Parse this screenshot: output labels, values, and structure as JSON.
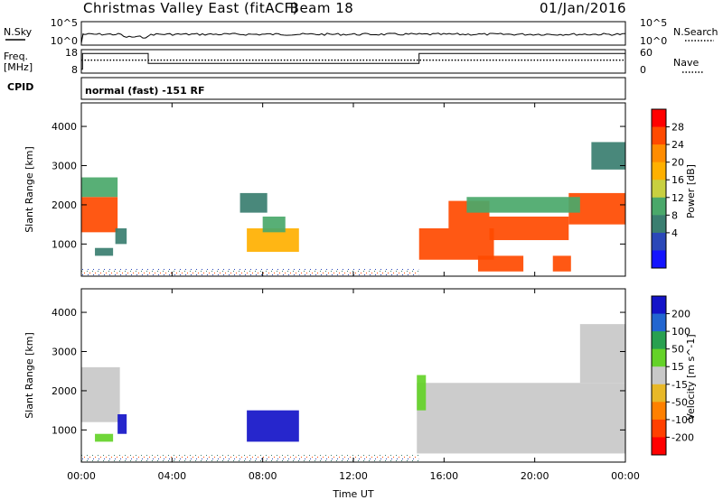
{
  "header": {
    "station_title": "Christmas Valley East (fitACF)",
    "beam_label": "Beam 18",
    "date": "01/Jan/2016"
  },
  "noise_panel": {
    "left_label": "N.Sky",
    "right_label": "N.Search",
    "left_ticks": [
      "10^5",
      "10^0"
    ],
    "right_ticks": [
      "10^5",
      "10^0"
    ]
  },
  "freq_panel": {
    "left_label_top": "Freq.",
    "left_label_bottom": "[MHz]",
    "right_label": "Nave",
    "left_ticks": [
      "18",
      "8"
    ],
    "right_ticks": [
      "60",
      "0"
    ],
    "freq_series": {
      "x_hours": [
        0,
        0.05,
        0.05,
        2.95,
        2.95,
        14.9,
        14.9,
        24
      ],
      "y_mhz": [
        8,
        8,
        16,
        16,
        11,
        11,
        16,
        16
      ]
    },
    "nave_level": 40
  },
  "cpid": {
    "label": "CPID",
    "text": "normal (fast) -151 RF"
  },
  "x_axis": {
    "label": "Time UT",
    "ticks": [
      "00:00",
      "04:00",
      "08:00",
      "12:00",
      "16:00",
      "20:00",
      "00:00"
    ],
    "tick_hours": [
      0,
      4,
      8,
      12,
      16,
      20,
      24
    ]
  },
  "power_panel": {
    "ylabel": "Slant Range [km]",
    "yticks": [
      1000,
      2000,
      3000,
      4000
    ],
    "ylim": [
      180,
      4600
    ],
    "colorbar_label": "Power [dB]",
    "colorbar_ticks": [
      "28",
      "24",
      "20",
      "16",
      "12",
      "8",
      "4"
    ],
    "colorbar_colors": [
      "#ff0000",
      "#ff4a00",
      "#ff8c00",
      "#ffb000",
      "#c8d040",
      "#4aa86a",
      "#3a7e70",
      "#2b48b8",
      "#1414ff"
    ]
  },
  "velocity_panel": {
    "ylabel": "Slant Range [km]",
    "yticks": [
      1000,
      2000,
      3000,
      4000
    ],
    "ylim": [
      180,
      4600
    ],
    "colorbar_label": "Velocity [m s^-1]",
    "colorbar_ticks": [
      "200",
      "100",
      "50",
      "15",
      "-15",
      "-50",
      "-100",
      "-200"
    ],
    "colorbar_colors": [
      "#1414c8",
      "#2266d0",
      "#28a050",
      "#64d228",
      "#c8c8c8",
      "#e8b828",
      "#ff8000",
      "#ff4000",
      "#ff0000"
    ]
  },
  "chart_data": {
    "type": "heatmap",
    "x_range_hours": [
      0,
      24
    ],
    "y_range_km": [
      180,
      4600
    ],
    "power_regions": [
      {
        "t0": 0.0,
        "t1": 1.6,
        "r0": 1300,
        "r1": 2200,
        "db": 26
      },
      {
        "t0": 0.0,
        "t1": 1.6,
        "r0": 2200,
        "r1": 2700,
        "db": 12
      },
      {
        "t0": 1.5,
        "t1": 2.0,
        "r0": 1000,
        "r1": 1400,
        "db": 10
      },
      {
        "t0": 0.6,
        "t1": 1.4,
        "r0": 700,
        "r1": 900,
        "db": 8
      },
      {
        "t0": 7.3,
        "t1": 9.6,
        "r0": 800,
        "r1": 1400,
        "db": 18
      },
      {
        "t0": 8.0,
        "t1": 9.0,
        "r0": 1300,
        "r1": 1700,
        "db": 12
      },
      {
        "t0": 7.0,
        "t1": 8.2,
        "r0": 1800,
        "r1": 2300,
        "db": 10
      },
      {
        "t0": 14.9,
        "t1": 18.2,
        "r0": 600,
        "r1": 1400,
        "db": 26
      },
      {
        "t0": 16.2,
        "t1": 18.0,
        "r0": 1400,
        "r1": 2100,
        "db": 26
      },
      {
        "t0": 17.5,
        "t1": 19.5,
        "r0": 300,
        "r1": 700,
        "db": 28
      },
      {
        "t0": 18.0,
        "t1": 21.5,
        "r0": 1100,
        "r1": 1700,
        "db": 28
      },
      {
        "t0": 20.8,
        "t1": 21.6,
        "r0": 300,
        "r1": 700,
        "db": 28
      },
      {
        "t0": 21.5,
        "t1": 24.0,
        "r0": 1500,
        "r1": 2300,
        "db": 26
      },
      {
        "t0": 17.0,
        "t1": 22.0,
        "r0": 1800,
        "r1": 2200,
        "db": 12
      },
      {
        "t0": 22.5,
        "t1": 24.0,
        "r0": 2900,
        "r1": 3600,
        "db": 10
      }
    ],
    "velocity_regions": [
      {
        "t0": 0.0,
        "t1": 1.7,
        "r0": 1200,
        "r1": 2600,
        "v": 0
      },
      {
        "t0": 1.6,
        "t1": 2.0,
        "r0": 900,
        "r1": 1400,
        "v": 200
      },
      {
        "t0": 0.6,
        "t1": 1.4,
        "r0": 700,
        "r1": 900,
        "v": 60
      },
      {
        "t0": 7.3,
        "t1": 9.6,
        "r0": 700,
        "r1": 1500,
        "v": 200
      },
      {
        "t0": 14.8,
        "t1": 24.0,
        "r0": 400,
        "r1": 2200,
        "v": 0
      },
      {
        "t0": 14.8,
        "t1": 15.2,
        "r0": 1500,
        "r1": 2400,
        "v": 60
      },
      {
        "t0": 22.0,
        "t1": 24.0,
        "r0": 2200,
        "r1": 3700,
        "v": 0
      }
    ]
  }
}
